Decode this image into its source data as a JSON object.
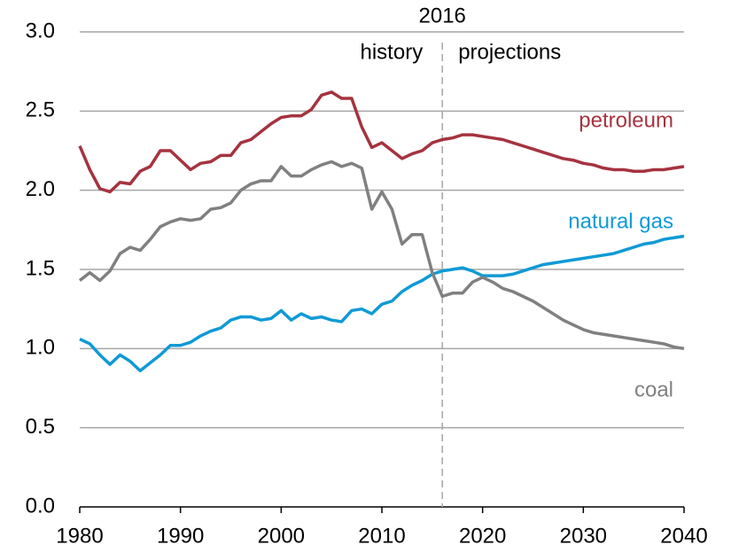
{
  "chart_data": {
    "type": "line",
    "x": [
      1980,
      1981,
      1982,
      1983,
      1984,
      1985,
      1986,
      1987,
      1988,
      1989,
      1990,
      1991,
      1992,
      1993,
      1994,
      1995,
      1996,
      1997,
      1998,
      1999,
      2000,
      2001,
      2002,
      2003,
      2004,
      2005,
      2006,
      2007,
      2008,
      2009,
      2010,
      2011,
      2012,
      2013,
      2014,
      2015,
      2016,
      2017,
      2018,
      2019,
      2020,
      2021,
      2022,
      2023,
      2024,
      2025,
      2026,
      2027,
      2028,
      2029,
      2030,
      2031,
      2032,
      2033,
      2034,
      2035,
      2036,
      2037,
      2038,
      2039,
      2040
    ],
    "series": [
      {
        "name": "petroleum",
        "color": "#a5333f",
        "values": [
          2.28,
          2.13,
          2.01,
          1.99,
          2.05,
          2.04,
          2.12,
          2.15,
          2.25,
          2.25,
          2.19,
          2.13,
          2.17,
          2.18,
          2.22,
          2.22,
          2.3,
          2.32,
          2.37,
          2.42,
          2.46,
          2.47,
          2.47,
          2.51,
          2.6,
          2.62,
          2.58,
          2.58,
          2.4,
          2.27,
          2.3,
          2.25,
          2.2,
          2.23,
          2.25,
          2.3,
          2.32,
          2.33,
          2.35,
          2.35,
          2.34,
          2.33,
          2.32,
          2.3,
          2.28,
          2.26,
          2.24,
          2.22,
          2.2,
          2.19,
          2.17,
          2.16,
          2.14,
          2.13,
          2.13,
          2.12,
          2.12,
          2.13,
          2.13,
          2.14,
          2.15
        ]
      },
      {
        "name": "natural gas",
        "color": "#0f9ad6",
        "values": [
          1.06,
          1.03,
          0.96,
          0.9,
          0.96,
          0.92,
          0.86,
          0.91,
          0.96,
          1.02,
          1.02,
          1.04,
          1.08,
          1.11,
          1.13,
          1.18,
          1.2,
          1.2,
          1.18,
          1.19,
          1.24,
          1.18,
          1.22,
          1.19,
          1.2,
          1.18,
          1.17,
          1.24,
          1.25,
          1.22,
          1.28,
          1.3,
          1.36,
          1.4,
          1.43,
          1.47,
          1.49,
          1.5,
          1.51,
          1.49,
          1.46,
          1.46,
          1.46,
          1.47,
          1.49,
          1.51,
          1.53,
          1.54,
          1.55,
          1.56,
          1.57,
          1.58,
          1.59,
          1.6,
          1.62,
          1.64,
          1.66,
          1.67,
          1.69,
          1.7,
          1.71
        ]
      },
      {
        "name": "coal",
        "color": "#808080",
        "values": [
          1.43,
          1.48,
          1.43,
          1.49,
          1.6,
          1.64,
          1.62,
          1.69,
          1.77,
          1.8,
          1.82,
          1.81,
          1.82,
          1.88,
          1.89,
          1.92,
          2.0,
          2.04,
          2.06,
          2.06,
          2.15,
          2.09,
          2.09,
          2.13,
          2.16,
          2.18,
          2.15,
          2.17,
          2.14,
          1.88,
          1.99,
          1.88,
          1.66,
          1.72,
          1.72,
          1.48,
          1.33,
          1.35,
          1.35,
          1.42,
          1.45,
          1.42,
          1.38,
          1.36,
          1.33,
          1.3,
          1.26,
          1.22,
          1.18,
          1.15,
          1.12,
          1.1,
          1.09,
          1.08,
          1.07,
          1.06,
          1.05,
          1.04,
          1.03,
          1.01,
          1.0
        ]
      }
    ],
    "divider_x": 2016,
    "left_annotation": "history",
    "right_annotation": "projections",
    "xlim": [
      1980,
      2040
    ],
    "xticks": [
      1980,
      1990,
      2000,
      2010,
      2020,
      2030,
      2040
    ],
    "ylim": [
      0,
      3
    ],
    "yticks": [
      {
        "value": 0,
        "label": "0.0"
      },
      0.5,
      {
        "value": 1,
        "label": "1.0"
      },
      1.5,
      {
        "value": 2,
        "label": "2.0"
      },
      2.5,
      {
        "value": 3,
        "label": "3.0"
      }
    ],
    "grid": true
  }
}
